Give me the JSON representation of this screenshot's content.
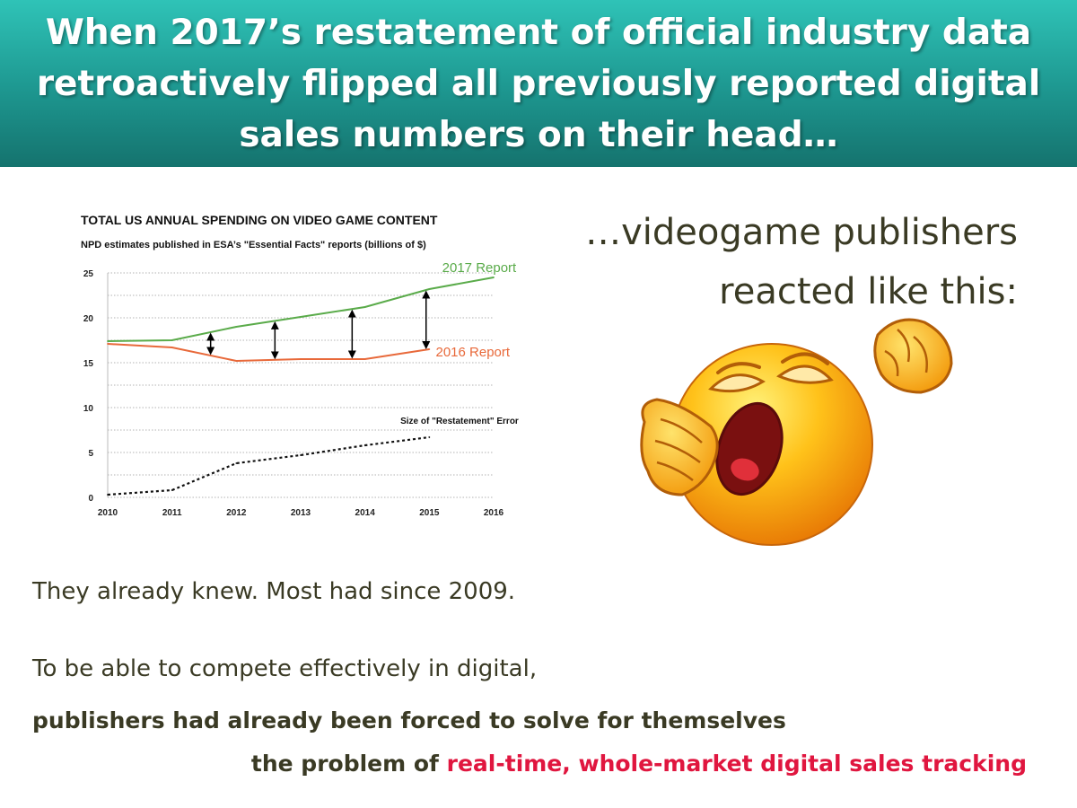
{
  "header": {
    "title": "When 2017’s restatement of official industry data retroactively flipped all previously reported digital sales numbers on their head…"
  },
  "right_text": {
    "line1": "…videogame publishers",
    "line2": "reacted like this:"
  },
  "emoji": {
    "icon": "yawning-face-icon"
  },
  "body": {
    "line1": "They already knew.  Most had since 2009.",
    "line2": "To be able to compete effectively in digital,",
    "line3": "publishers had already been forced to solve for themselves",
    "line4_prefix": "the problem of ",
    "line4_highlight": "real-time, whole-market digital sales tracking"
  },
  "colors": {
    "header_top": "#2fc3b7",
    "header_bottom": "#15736e",
    "series_2017": "#5aab4a",
    "series_2016": "#e8693a",
    "highlight": "#e0163f",
    "text": "#3a3a24"
  },
  "chart_data": {
    "type": "line",
    "title": "TOTAL US ANNUAL SPENDING ON VIDEO GAME CONTENT",
    "subtitle": "NPD estimates published in ESA’s \"Essential Facts\" reports (billions of $)",
    "x": [
      2010,
      2011,
      2012,
      2013,
      2014,
      2015,
      2016
    ],
    "ylim": [
      0,
      25
    ],
    "yticks": [
      0,
      5,
      10,
      15,
      20,
      25
    ],
    "grid": true,
    "series": [
      {
        "name": "2017 Report",
        "x": [
          2010,
          2011,
          2012,
          2013,
          2014,
          2015,
          2016
        ],
        "values": [
          17.4,
          17.5,
          19.0,
          20.1,
          21.2,
          23.2,
          24.5
        ]
      },
      {
        "name": "2016 Report",
        "x": [
          2010,
          2011,
          2012,
          2013,
          2014,
          2015
        ],
        "values": [
          17.1,
          16.7,
          15.2,
          15.4,
          15.4,
          16.5
        ]
      },
      {
        "name": "Size of  \"Restatement\" Error",
        "x": [
          2010,
          2011,
          2012,
          2013,
          2014,
          2015
        ],
        "values": [
          0.3,
          0.8,
          3.8,
          4.7,
          5.8,
          6.7
        ]
      }
    ],
    "arrows_x": [
      2011.6,
      2012.6,
      2013.8,
      2014.95
    ]
  }
}
